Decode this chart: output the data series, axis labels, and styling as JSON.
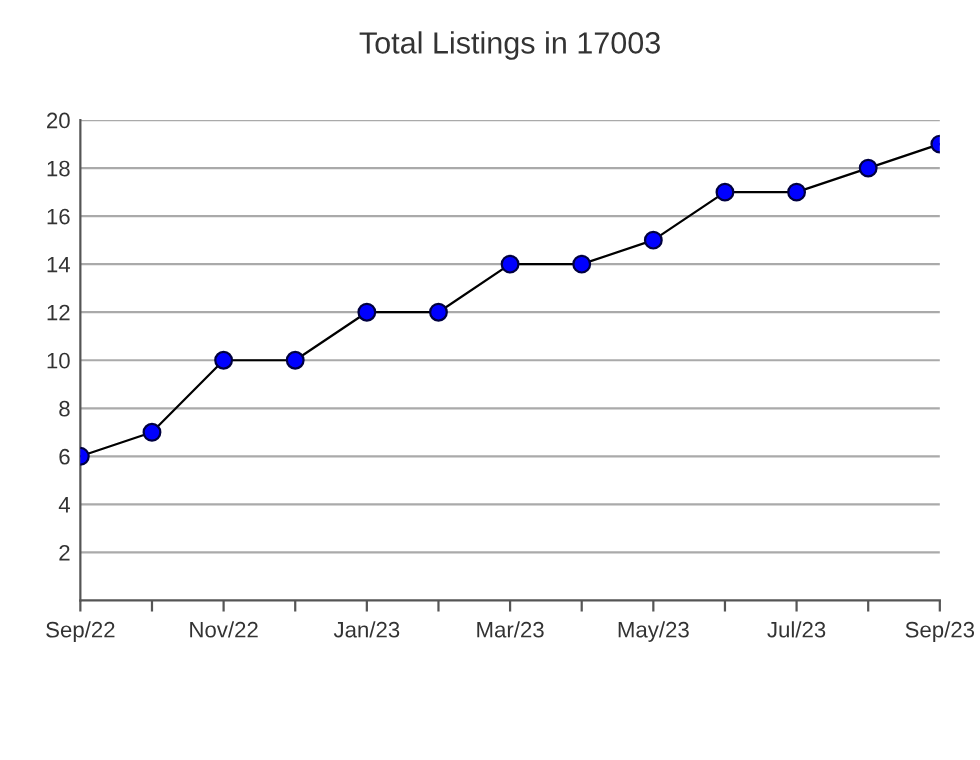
{
  "chart_data": {
    "type": "line",
    "title": "Total Listings in 17003",
    "categories": [
      "Sep/22",
      null,
      "Nov/22",
      null,
      "Jan/23",
      null,
      "Mar/23",
      null,
      "May/23",
      null,
      "Jul/23",
      null,
      "Sep/23"
    ],
    "series": [
      {
        "color": "#0000ff",
        "values": [
          6,
          7,
          10,
          10,
          12,
          12,
          14,
          14,
          15,
          17,
          17,
          18,
          19
        ]
      }
    ],
    "ylim": [
      0,
      20
    ],
    "yticks": [
      2,
      4,
      6,
      8,
      10,
      12,
      14,
      16,
      18,
      20
    ],
    "grid": "y",
    "marker": "circle",
    "line_style": "solid",
    "legend": false
  }
}
